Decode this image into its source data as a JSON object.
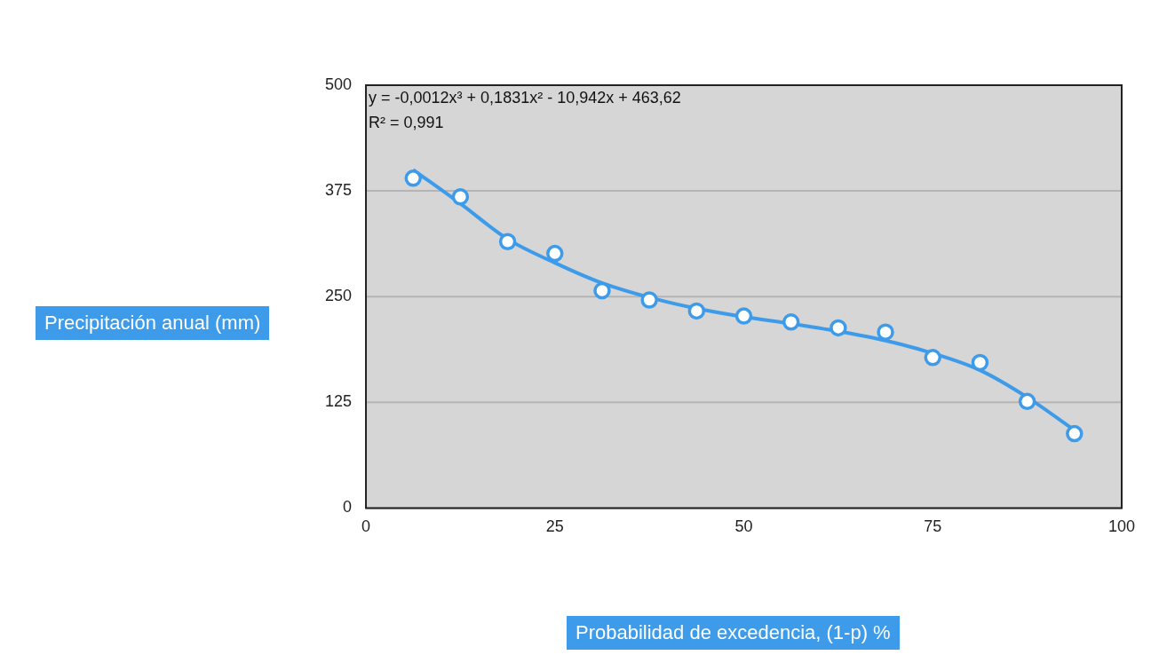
{
  "chart_data": {
    "type": "scatter",
    "xlabel": "Probabilidad de excedencia, (1-p) %",
    "ylabel": "Precipitación anual (mm)",
    "annotations": [
      "y = -0,0012x³ + 0,1831x² - 10,942x + 463,62",
      "R² = 0,991"
    ],
    "x": [
      6.25,
      12.5,
      18.75,
      25,
      31.25,
      37.5,
      43.75,
      50,
      56.25,
      62.5,
      68.75,
      75,
      81.25,
      87.5,
      93.75
    ],
    "xlim": [
      0,
      100
    ],
    "xticks": [
      0,
      25,
      50,
      75,
      100
    ],
    "ylim": [
      0,
      500
    ],
    "yticks": [
      0,
      125,
      250,
      375,
      500
    ],
    "grid": "y",
    "marker": "circle",
    "series": [
      {
        "color": "#3d9be9",
        "values": [
          390,
          368,
          315,
          301,
          257,
          246,
          233,
          227,
          220,
          213,
          208,
          178,
          172,
          126,
          88
        ]
      },
      {
        "type": "line",
        "marker": "none",
        "color": "#3d9be9",
        "x": [
          6.25,
          12.5,
          18.75,
          25,
          31.25,
          37.5,
          43.75,
          50,
          56.25,
          62.5,
          68.75,
          75,
          81.25,
          87.5,
          93.75
        ],
        "values": [
          400,
          360,
          318,
          290,
          266,
          249,
          236,
          226,
          218,
          209,
          198,
          183,
          163,
          131,
          92
        ]
      }
    ]
  }
}
